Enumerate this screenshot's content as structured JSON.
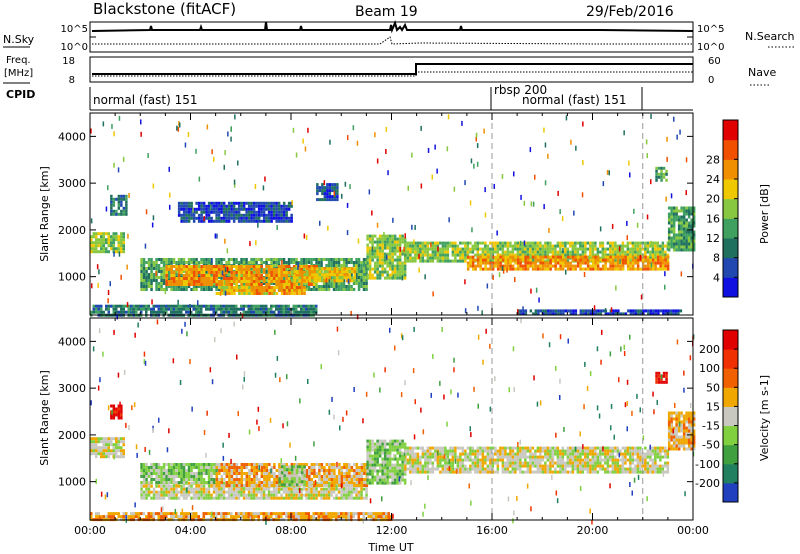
{
  "header": {
    "station": "Blackstone (fitACF)",
    "beam": "Beam 19",
    "date": "29/Feb/2016"
  },
  "top_panels": {
    "nsky_label": "N.Sky",
    "nsky_ticks": [
      "10^5",
      "10^0"
    ],
    "nsearch_label": "N.Search",
    "nsearch_ticks": [
      "10^5",
      "10^0"
    ],
    "freq_label": "Freq.",
    "freq_unit": "[MHz]",
    "freq_ticks": [
      "18",
      "8"
    ],
    "nave_label": "Nave",
    "nave_ticks": [
      "60",
      "0"
    ],
    "cpid_label": "CPID"
  },
  "cpid_segments": [
    {
      "label": "normal (fast) 151",
      "start_hour": 0,
      "end_hour": 16
    },
    {
      "label": "rbsp 200",
      "start_hour": 16,
      "end_hour": 22
    },
    {
      "label": "normal (fast) 151",
      "start_hour": 16,
      "end_hour": 22
    }
  ],
  "chart_data": [
    {
      "type": "heatmap",
      "name": "power",
      "xlabel": "Time UT",
      "ylabel": "Slant Range [km]",
      "xlim": [
        0,
        24
      ],
      "ylim": [
        180,
        4500
      ],
      "x_ticks": [
        "00:00",
        "04:00",
        "08:00",
        "12:00",
        "16:00",
        "20:00",
        "00:00"
      ],
      "y_ticks": [
        "1000",
        "2000",
        "3000",
        "4000"
      ],
      "colorbar": {
        "label": "Power [dB]",
        "ticks": [
          "4",
          "8",
          "12",
          "16",
          "20",
          "24",
          "28"
        ],
        "colors": [
          "#1010e0",
          "#2048b0",
          "#207060",
          "#40a060",
          "#88c840",
          "#f0c800",
          "#f09000",
          "#f05000",
          "#e00000"
        ]
      },
      "regions": [
        {
          "t0": 0.0,
          "t1": 1.3,
          "r0": 1550,
          "r1": 1950,
          "level": 4
        },
        {
          "t0": 0.8,
          "t1": 1.4,
          "r0": 2350,
          "r1": 2750,
          "level": 2
        },
        {
          "t0": 2.0,
          "t1": 11.0,
          "r0": 750,
          "r1": 1400,
          "level": 3
        },
        {
          "t0": 3.0,
          "t1": 9.0,
          "r0": 850,
          "r1": 1250,
          "level": 6
        },
        {
          "t0": 5.0,
          "t1": 7.5,
          "r0": 650,
          "r1": 800,
          "level": 5
        },
        {
          "t0": 6.5,
          "t1": 8.5,
          "r0": 650,
          "r1": 800,
          "level": 6
        },
        {
          "t0": 8.0,
          "t1": 10.5,
          "r0": 900,
          "r1": 1200,
          "level": 5
        },
        {
          "t0": 11.0,
          "t1": 12.5,
          "r0": 1000,
          "r1": 1900,
          "level": 4
        },
        {
          "t0": 3.5,
          "t1": 8.0,
          "r0": 2200,
          "r1": 2600,
          "level": 1
        },
        {
          "t0": 9.0,
          "t1": 9.8,
          "r0": 2650,
          "r1": 3000,
          "level": 1
        },
        {
          "t0": 0.0,
          "t1": 9.0,
          "r0": 180,
          "r1": 400,
          "level": 2
        },
        {
          "t0": 12.5,
          "t1": 23.0,
          "r0": 1350,
          "r1": 1750,
          "level": 4
        },
        {
          "t0": 15.0,
          "t1": 23.0,
          "r0": 1150,
          "r1": 1450,
          "level": 6
        },
        {
          "t0": 23.0,
          "t1": 24.0,
          "r0": 1600,
          "r1": 2500,
          "level": 3
        },
        {
          "t0": 22.5,
          "t1": 22.9,
          "r0": 3050,
          "r1": 3350,
          "level": 3
        },
        {
          "t0": 17.0,
          "t1": 23.5,
          "r0": 180,
          "r1": 300,
          "level": 1
        }
      ]
    },
    {
      "type": "heatmap",
      "name": "velocity",
      "xlabel": "Time UT",
      "ylabel": "Slant Range [km]",
      "xlim": [
        0,
        24
      ],
      "ylim": [
        180,
        4500
      ],
      "x_ticks": [
        "00:00",
        "04:00",
        "08:00",
        "12:00",
        "16:00",
        "20:00",
        "00:00"
      ],
      "y_ticks": [
        "1000",
        "2000",
        "3000",
        "4000"
      ],
      "colorbar": {
        "label": "Velocity [m s-1]",
        "ticks": [
          "200",
          "100",
          "50",
          "15",
          "-15",
          "-50",
          "-100",
          "-200"
        ],
        "colors": [
          "#2040c0",
          "#208060",
          "#40a040",
          "#80d040",
          "#c8c8c0",
          "#f0a800",
          "#f06000",
          "#f03000",
          "#e00000"
        ]
      },
      "regions": [
        {
          "t0": 0.0,
          "t1": 1.3,
          "r0": 1550,
          "r1": 1950,
          "level": 4
        },
        {
          "t0": 0.8,
          "t1": 1.2,
          "r0": 2350,
          "r1": 2650,
          "level": 8
        },
        {
          "t0": 2.0,
          "t1": 11.0,
          "r0": 650,
          "r1": 1000,
          "level": 4
        },
        {
          "t0": 2.0,
          "t1": 5.0,
          "r0": 1000,
          "r1": 1400,
          "level": 3
        },
        {
          "t0": 5.0,
          "t1": 11.0,
          "r0": 900,
          "r1": 1400,
          "level": 5
        },
        {
          "t0": 7.5,
          "t1": 8.5,
          "r0": 950,
          "r1": 1350,
          "level": 3
        },
        {
          "t0": 11.0,
          "t1": 12.5,
          "r0": 1000,
          "r1": 1900,
          "level": 3
        },
        {
          "t0": 12.5,
          "t1": 23.0,
          "r0": 1200,
          "r1": 1750,
          "level": 4
        },
        {
          "t0": 23.0,
          "t1": 24.0,
          "r0": 1700,
          "r1": 2500,
          "level": 5
        },
        {
          "t0": 22.5,
          "t1": 22.9,
          "r0": 3100,
          "r1": 3350,
          "level": 8
        },
        {
          "t0": 0.0,
          "t1": 12.0,
          "r0": 180,
          "r1": 350,
          "level": 5
        }
      ]
    }
  ]
}
